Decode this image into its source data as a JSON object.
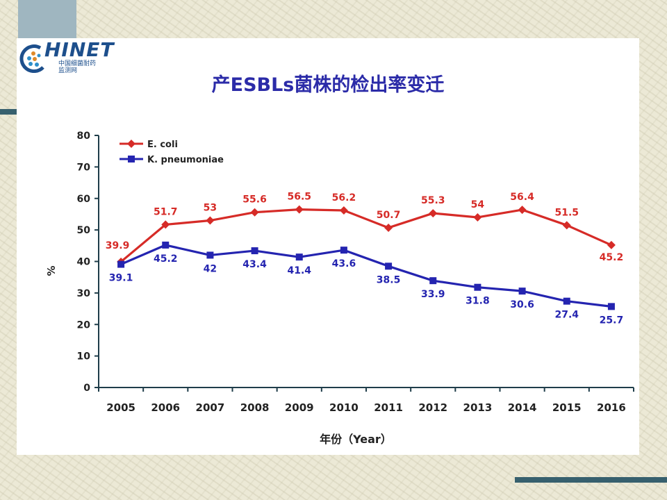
{
  "logo": {
    "word": "HINET",
    "sub_line1": "中国细菌耐药",
    "sub_line2": "监测网"
  },
  "chart_data": {
    "type": "line",
    "title": "产ESBLs菌株的检出率变迁",
    "xlabel": "年份（Year）",
    "ylabel": "%",
    "ylim": [
      0,
      80
    ],
    "yticks": [
      0,
      10,
      20,
      30,
      40,
      50,
      60,
      70,
      80
    ],
    "categories": [
      "2005",
      "2006",
      "2007",
      "2008",
      "2009",
      "2010",
      "2011",
      "2012",
      "2013",
      "2014",
      "2015",
      "2016"
    ],
    "legend_position": "top-left",
    "grid": false,
    "series": [
      {
        "name": "E. coli",
        "color": "#d62b27",
        "marker": "diamond",
        "values": [
          39.9,
          51.7,
          53,
          55.6,
          56.5,
          56.2,
          50.7,
          55.3,
          54,
          56.4,
          51.5,
          45.2
        ],
        "labels": [
          "39.9",
          "51.7",
          "53",
          "55.6",
          "56.5",
          "56.2",
          "50.7",
          "55.3",
          "54",
          "56.4",
          "51.5",
          "45.2"
        ]
      },
      {
        "name": "K. pneumoniae",
        "color": "#2424b0",
        "marker": "square",
        "values": [
          39.1,
          45.2,
          42,
          43.4,
          41.4,
          43.6,
          38.5,
          33.9,
          31.8,
          30.6,
          27.4,
          25.7
        ],
        "labels": [
          "39.1",
          "45.2",
          "42",
          "43.4",
          "41.4",
          "43.6",
          "38.5",
          "33.9",
          "31.8",
          "30.6",
          "27.4",
          "25.7"
        ]
      }
    ]
  }
}
